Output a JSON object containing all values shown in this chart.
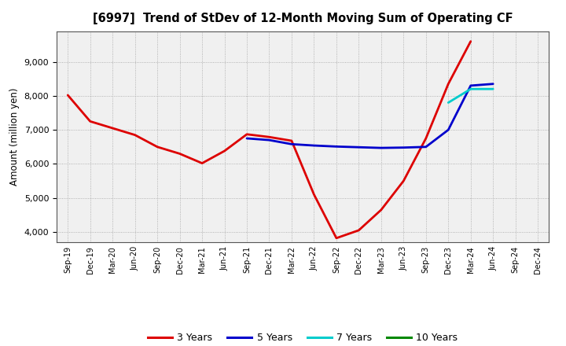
{
  "title": "[6997]  Trend of StDev of 12-Month Moving Sum of Operating CF",
  "ylabel": "Amount (million yen)",
  "ylim": [
    3700,
    9900
  ],
  "yticks": [
    4000,
    5000,
    6000,
    7000,
    8000,
    9000
  ],
  "background_color": "#ffffff",
  "plot_bg_color": "#f0f0f0",
  "grid_color": "#999999",
  "x_labels": [
    "Sep-19",
    "Dec-19",
    "Mar-20",
    "Jun-20",
    "Sep-20",
    "Dec-20",
    "Mar-21",
    "Jun-21",
    "Sep-21",
    "Dec-21",
    "Mar-22",
    "Jun-22",
    "Sep-22",
    "Dec-22",
    "Mar-23",
    "Jun-23",
    "Sep-23",
    "Dec-23",
    "Mar-24",
    "Jun-24",
    "Sep-24",
    "Dec-24"
  ],
  "series": {
    "3 Years": {
      "color": "#dd0000",
      "linewidth": 2.0,
      "values": [
        8020,
        7250,
        7050,
        6850,
        6500,
        6300,
        6020,
        6380,
        6870,
        6790,
        6680,
        5100,
        3820,
        4050,
        4650,
        5500,
        6750,
        8350,
        9600,
        null,
        null,
        null
      ]
    },
    "5 Years": {
      "color": "#0000cc",
      "linewidth": 2.0,
      "values": [
        null,
        null,
        null,
        null,
        null,
        null,
        null,
        null,
        6750,
        6700,
        6580,
        6540,
        6510,
        6490,
        6470,
        6480,
        6500,
        7000,
        8300,
        8350,
        null,
        null
      ]
    },
    "7 Years": {
      "color": "#00cccc",
      "linewidth": 2.0,
      "values": [
        null,
        null,
        null,
        null,
        null,
        null,
        null,
        null,
        null,
        null,
        null,
        null,
        null,
        null,
        null,
        null,
        null,
        7800,
        8200,
        8200,
        null,
        null
      ]
    },
    "10 Years": {
      "color": "#008800",
      "linewidth": 2.0,
      "values": [
        null,
        null,
        null,
        null,
        null,
        null,
        null,
        null,
        null,
        null,
        null,
        null,
        null,
        null,
        null,
        null,
        null,
        null,
        null,
        null,
        null,
        null
      ]
    }
  },
  "legend_order": [
    "3 Years",
    "5 Years",
    "7 Years",
    "10 Years"
  ]
}
